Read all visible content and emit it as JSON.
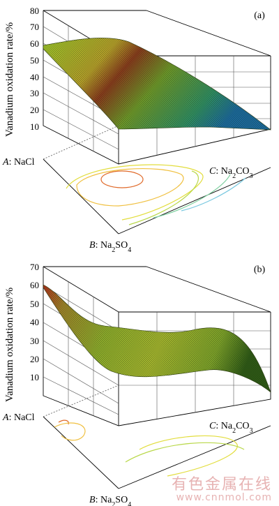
{
  "chart_data": [
    {
      "panel": "(a)",
      "type": "surface",
      "ylabel": "Vanadium oxidation rate/%",
      "y_ticks": [
        10,
        20,
        30,
        40,
        50,
        60,
        70,
        80
      ],
      "ylim": [
        10,
        80
      ],
      "factors": {
        "A": "NaCl",
        "B": "Na2SO4",
        "C": "Na2CO3"
      },
      "corner_values": {
        "left": 60,
        "apex": 55,
        "right": 10
      },
      "surface_peak": 64,
      "grid": true,
      "contour_colors": [
        "#e06a2a",
        "#f0c040",
        "#e2dd3c",
        "#b9d84a",
        "#7fd0a0",
        "#79c8e0"
      ]
    },
    {
      "panel": "(b)",
      "type": "surface",
      "ylabel": "Vanadium oxidation rate/%",
      "y_ticks": [
        10,
        20,
        30,
        40,
        50,
        60,
        70
      ],
      "ylim": [
        10,
        70
      ],
      "factors": {
        "A": "NaCl",
        "B": "Na2SO4",
        "C": "Na2CO3"
      },
      "corner_values": {
        "left": 60,
        "apex": 12,
        "right": 5
      },
      "grid": true,
      "contour_colors": [
        "#e06a2a",
        "#f0c040",
        "#e2dd3c",
        "#b9d84a"
      ]
    }
  ],
  "watermark": {
    "line1": "有色金属在线",
    "line2": "www.cnnmol.com"
  }
}
